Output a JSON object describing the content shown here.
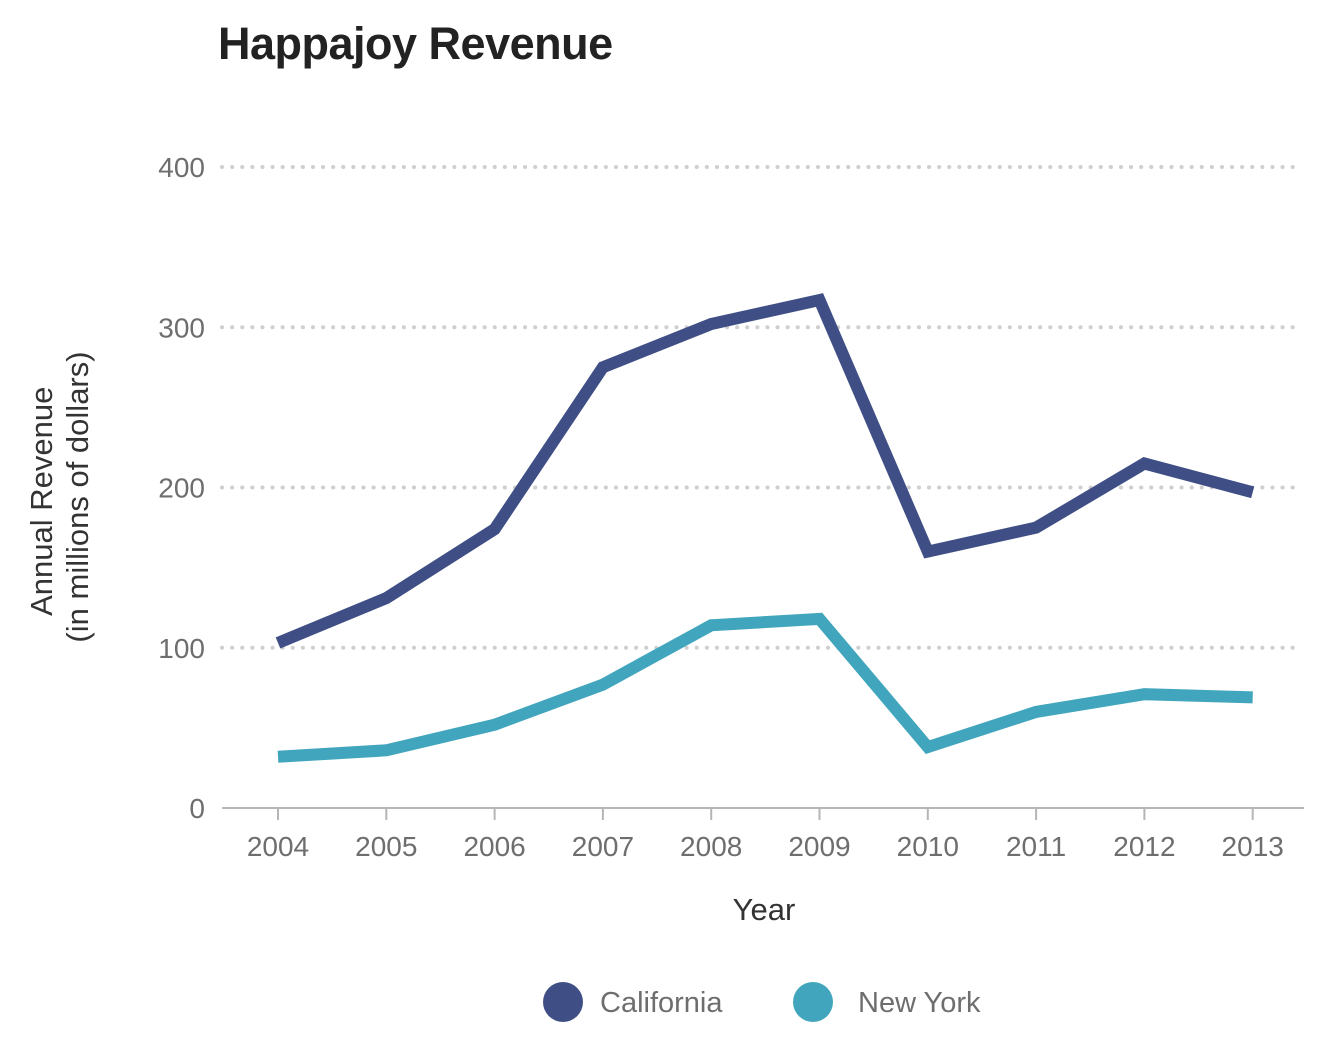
{
  "chart_data": {
    "type": "line",
    "title": "Happajoy Revenue",
    "xlabel": "Year",
    "ylabel": [
      "Annual Revenue",
      "(in millions of dollars)"
    ],
    "categories": [
      "2004",
      "2005",
      "2006",
      "2007",
      "2008",
      "2009",
      "2010",
      "2011",
      "2012",
      "2013"
    ],
    "yticks": [
      "0",
      "100",
      "200",
      "300",
      "400"
    ],
    "ylim": [
      0,
      400
    ],
    "grid": true,
    "legend_position": "bottom",
    "series": [
      {
        "name": "California",
        "color": "#3f4f85",
        "values": [
          103,
          131,
          174,
          275,
          302,
          317,
          160,
          175,
          215,
          197
        ]
      },
      {
        "name": "New York",
        "color": "#41a6bd",
        "values": [
          32,
          36,
          52,
          77,
          114,
          118,
          38,
          60,
          71,
          69
        ]
      }
    ]
  }
}
